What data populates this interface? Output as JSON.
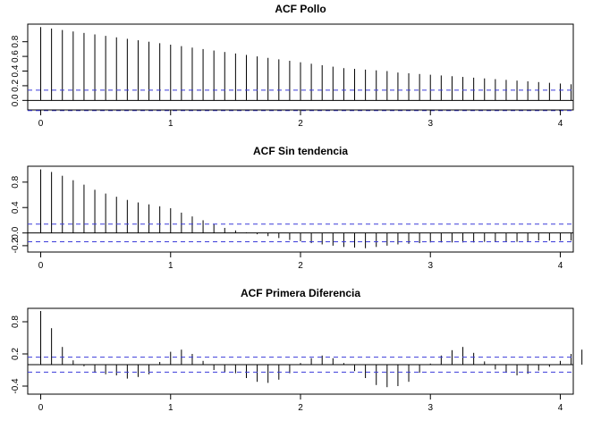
{
  "chart_data": [
    {
      "type": "bar",
      "title": "ACF Pollo",
      "xlabel": "",
      "ylabel": "",
      "xlim": [
        -0.1,
        4.1
      ],
      "ylim": [
        -0.13,
        1.04
      ],
      "xticks": [
        0,
        1,
        2,
        3,
        4
      ],
      "yticks": [
        0.0,
        0.2,
        0.4,
        0.6,
        0.8
      ],
      "lag_step": 0.0833333,
      "ci": 0.139,
      "colors": {
        "ci": "#3b3bd9",
        "bars": "#000000"
      },
      "values": [
        1.0,
        0.98,
        0.96,
        0.94,
        0.92,
        0.9,
        0.88,
        0.86,
        0.84,
        0.82,
        0.8,
        0.78,
        0.76,
        0.74,
        0.72,
        0.7,
        0.68,
        0.66,
        0.64,
        0.62,
        0.6,
        0.58,
        0.56,
        0.54,
        0.52,
        0.5,
        0.48,
        0.46,
        0.44,
        0.43,
        0.42,
        0.41,
        0.4,
        0.38,
        0.37,
        0.36,
        0.35,
        0.34,
        0.33,
        0.32,
        0.31,
        0.3,
        0.29,
        0.28,
        0.27,
        0.26,
        0.25,
        0.24,
        0.23,
        0.22
      ]
    },
    {
      "type": "bar",
      "title": "ACF Sin tendencia",
      "xlabel": "",
      "ylabel": "",
      "xlim": [
        -0.1,
        4.1
      ],
      "ylim": [
        -0.3,
        1.05
      ],
      "xticks": [
        0,
        1,
        2,
        3,
        4
      ],
      "yticks": [
        -0.2,
        0.0,
        0.4,
        0.8
      ],
      "lag_step": 0.0833333,
      "ci": 0.139,
      "colors": {
        "ci": "#3b3bd9",
        "bars": "#000000"
      },
      "values": [
        1.0,
        0.96,
        0.9,
        0.83,
        0.76,
        0.68,
        0.62,
        0.57,
        0.52,
        0.48,
        0.45,
        0.42,
        0.39,
        0.32,
        0.26,
        0.2,
        0.14,
        0.08,
        0.04,
        0.01,
        -0.02,
        -0.05,
        -0.08,
        -0.11,
        -0.13,
        -0.16,
        -0.18,
        -0.2,
        -0.22,
        -0.23,
        -0.24,
        -0.22,
        -0.2,
        -0.18,
        -0.17,
        -0.16,
        -0.15,
        -0.15,
        -0.15,
        -0.15,
        -0.15,
        -0.14,
        -0.14,
        -0.14,
        -0.14,
        -0.13,
        -0.12,
        -0.12,
        -0.12,
        -0.12
      ]
    },
    {
      "type": "bar",
      "title": "ACF Primera Diferencia",
      "xlabel": "",
      "ylabel": "",
      "xlim": [
        -0.1,
        4.1
      ],
      "ylim": [
        -0.55,
        1.05
      ],
      "xticks": [
        0,
        1,
        2,
        3,
        4
      ],
      "yticks": [
        -0.4,
        0.2,
        0.8
      ],
      "lag_step": 0.0833333,
      "ci": 0.139,
      "colors": {
        "ci": "#3b3bd9",
        "bars": "#000000"
      },
      "values": [
        1.0,
        0.68,
        0.33,
        0.08,
        -0.03,
        -0.15,
        -0.18,
        -0.2,
        -0.26,
        -0.23,
        -0.18,
        0.05,
        0.24,
        0.28,
        0.2,
        0.07,
        -0.1,
        -0.14,
        -0.16,
        -0.25,
        -0.32,
        -0.34,
        -0.28,
        -0.16,
        0.03,
        0.12,
        0.17,
        0.12,
        0.03,
        -0.12,
        -0.25,
        -0.38,
        -0.42,
        -0.4,
        -0.32,
        -0.15,
        0.02,
        0.17,
        0.27,
        0.33,
        0.22,
        0.06,
        -0.09,
        -0.15,
        -0.2,
        -0.17,
        -0.11,
        -0.04,
        0.07,
        0.2,
        0.28
      ]
    }
  ]
}
